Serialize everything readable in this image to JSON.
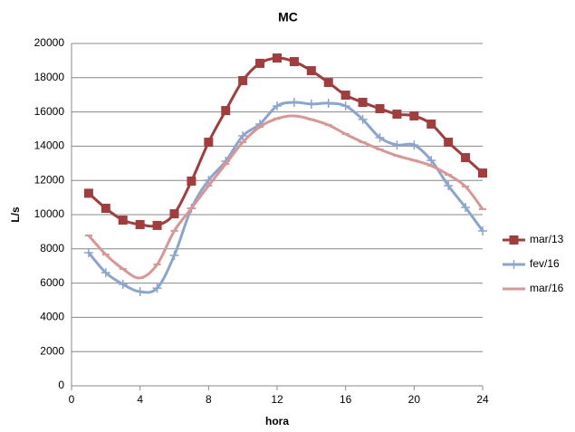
{
  "chart_data": {
    "type": "line",
    "title": "MC",
    "x_label": "hora",
    "y_label": "L/s",
    "x": [
      1,
      2,
      3,
      4,
      5,
      6,
      7,
      8,
      9,
      10,
      11,
      12,
      13,
      14,
      15,
      16,
      17,
      18,
      19,
      20,
      21,
      22,
      23,
      24
    ],
    "series": [
      {
        "name": "mar/13",
        "color": "#a33c3c",
        "marker": "square",
        "values": [
          11250,
          10370,
          9680,
          9420,
          9370,
          10050,
          11960,
          14230,
          16080,
          17830,
          18840,
          19150,
          18940,
          18410,
          17720,
          16980,
          16560,
          16190,
          15870,
          15770,
          15290,
          14230,
          13330,
          12430
        ]
      },
      {
        "name": "fev/16",
        "color": "#8aa5cf",
        "marker": "plus",
        "values": [
          7780,
          6610,
          5930,
          5500,
          5710,
          7620,
          10370,
          12010,
          13120,
          14600,
          15290,
          16350,
          16560,
          16460,
          16510,
          16350,
          15560,
          14500,
          14070,
          14070,
          13170,
          11690,
          10420,
          9050
        ]
      },
      {
        "name": "mar/16",
        "color": "#d99694",
        "marker": "dash",
        "values": [
          8780,
          7670,
          6830,
          6300,
          7090,
          9050,
          10370,
          11690,
          12960,
          14230,
          15130,
          15610,
          15770,
          15560,
          15240,
          14710,
          14230,
          13810,
          13440,
          13170,
          12860,
          12330,
          11640,
          10320
        ]
      }
    ],
    "xlim": [
      0,
      24
    ],
    "xticks": [
      0,
      4,
      8,
      12,
      16,
      20,
      24
    ],
    "ylim": [
      0,
      20000
    ],
    "yticks": [
      0,
      2000,
      4000,
      6000,
      8000,
      10000,
      12000,
      14000,
      16000,
      18000,
      20000
    ],
    "grid": true,
    "legend": "right"
  }
}
